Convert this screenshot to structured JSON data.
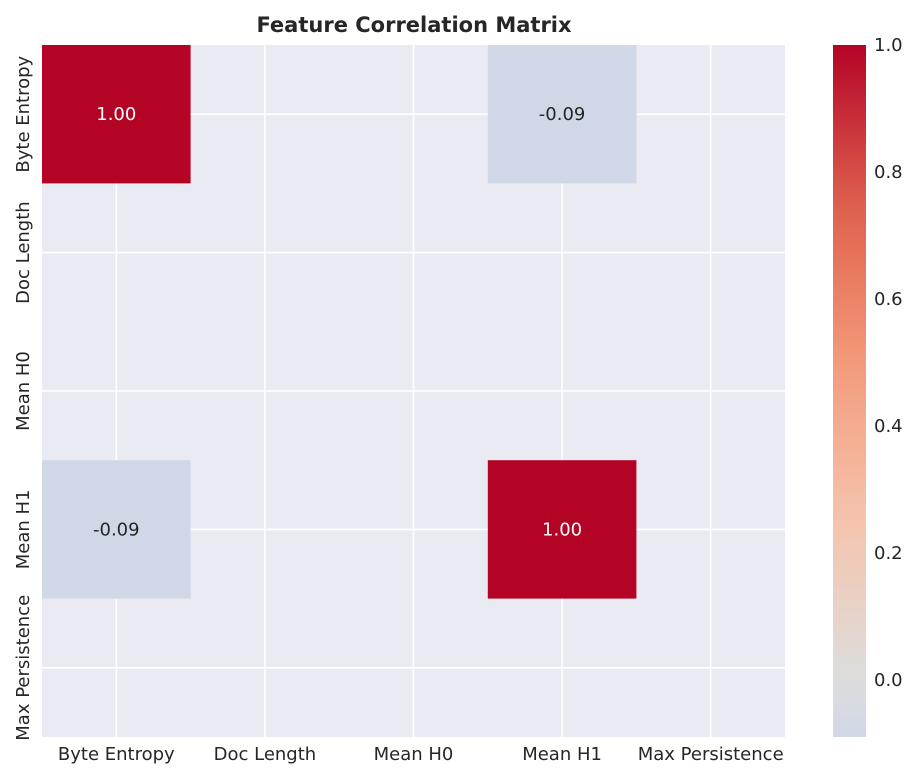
{
  "chart_data": {
    "type": "heatmap",
    "title": "Feature Correlation Matrix",
    "xlabel": "",
    "ylabel": "",
    "x_categories": [
      "Byte Entropy",
      "Doc Length",
      "Mean H0",
      "Mean H1",
      "Max Persistence"
    ],
    "y_categories": [
      "Byte Entropy",
      "Doc Length",
      "Mean H0",
      "Mean H1",
      "Max Persistence"
    ],
    "values": [
      [
        1.0,
        null,
        null,
        -0.09,
        null
      ],
      [
        null,
        null,
        null,
        null,
        null
      ],
      [
        null,
        null,
        null,
        null,
        null
      ],
      [
        -0.09,
        null,
        null,
        1.0,
        null
      ],
      [
        null,
        null,
        null,
        null,
        null
      ]
    ],
    "annotations": [
      [
        "1.00",
        "",
        "",
        "-0.09",
        ""
      ],
      [
        "",
        "",
        "",
        "",
        ""
      ],
      [
        "",
        "",
        "",
        "",
        ""
      ],
      [
        "-0.09",
        "",
        "",
        "1.00",
        ""
      ],
      [
        "",
        "",
        "",
        "",
        ""
      ]
    ],
    "colormap": "coolwarm",
    "vmin": -0.09,
    "vmax": 1.0,
    "colorbar_ticks": [
      0.0,
      0.2,
      0.4,
      0.6,
      0.8,
      1.0
    ],
    "colorbar_tick_labels": [
      "0.0",
      "0.2",
      "0.4",
      "0.6",
      "0.8",
      "1.0"
    ],
    "grid": true,
    "background_color": "#eaeaf2",
    "grid_color": "#ffffff"
  }
}
